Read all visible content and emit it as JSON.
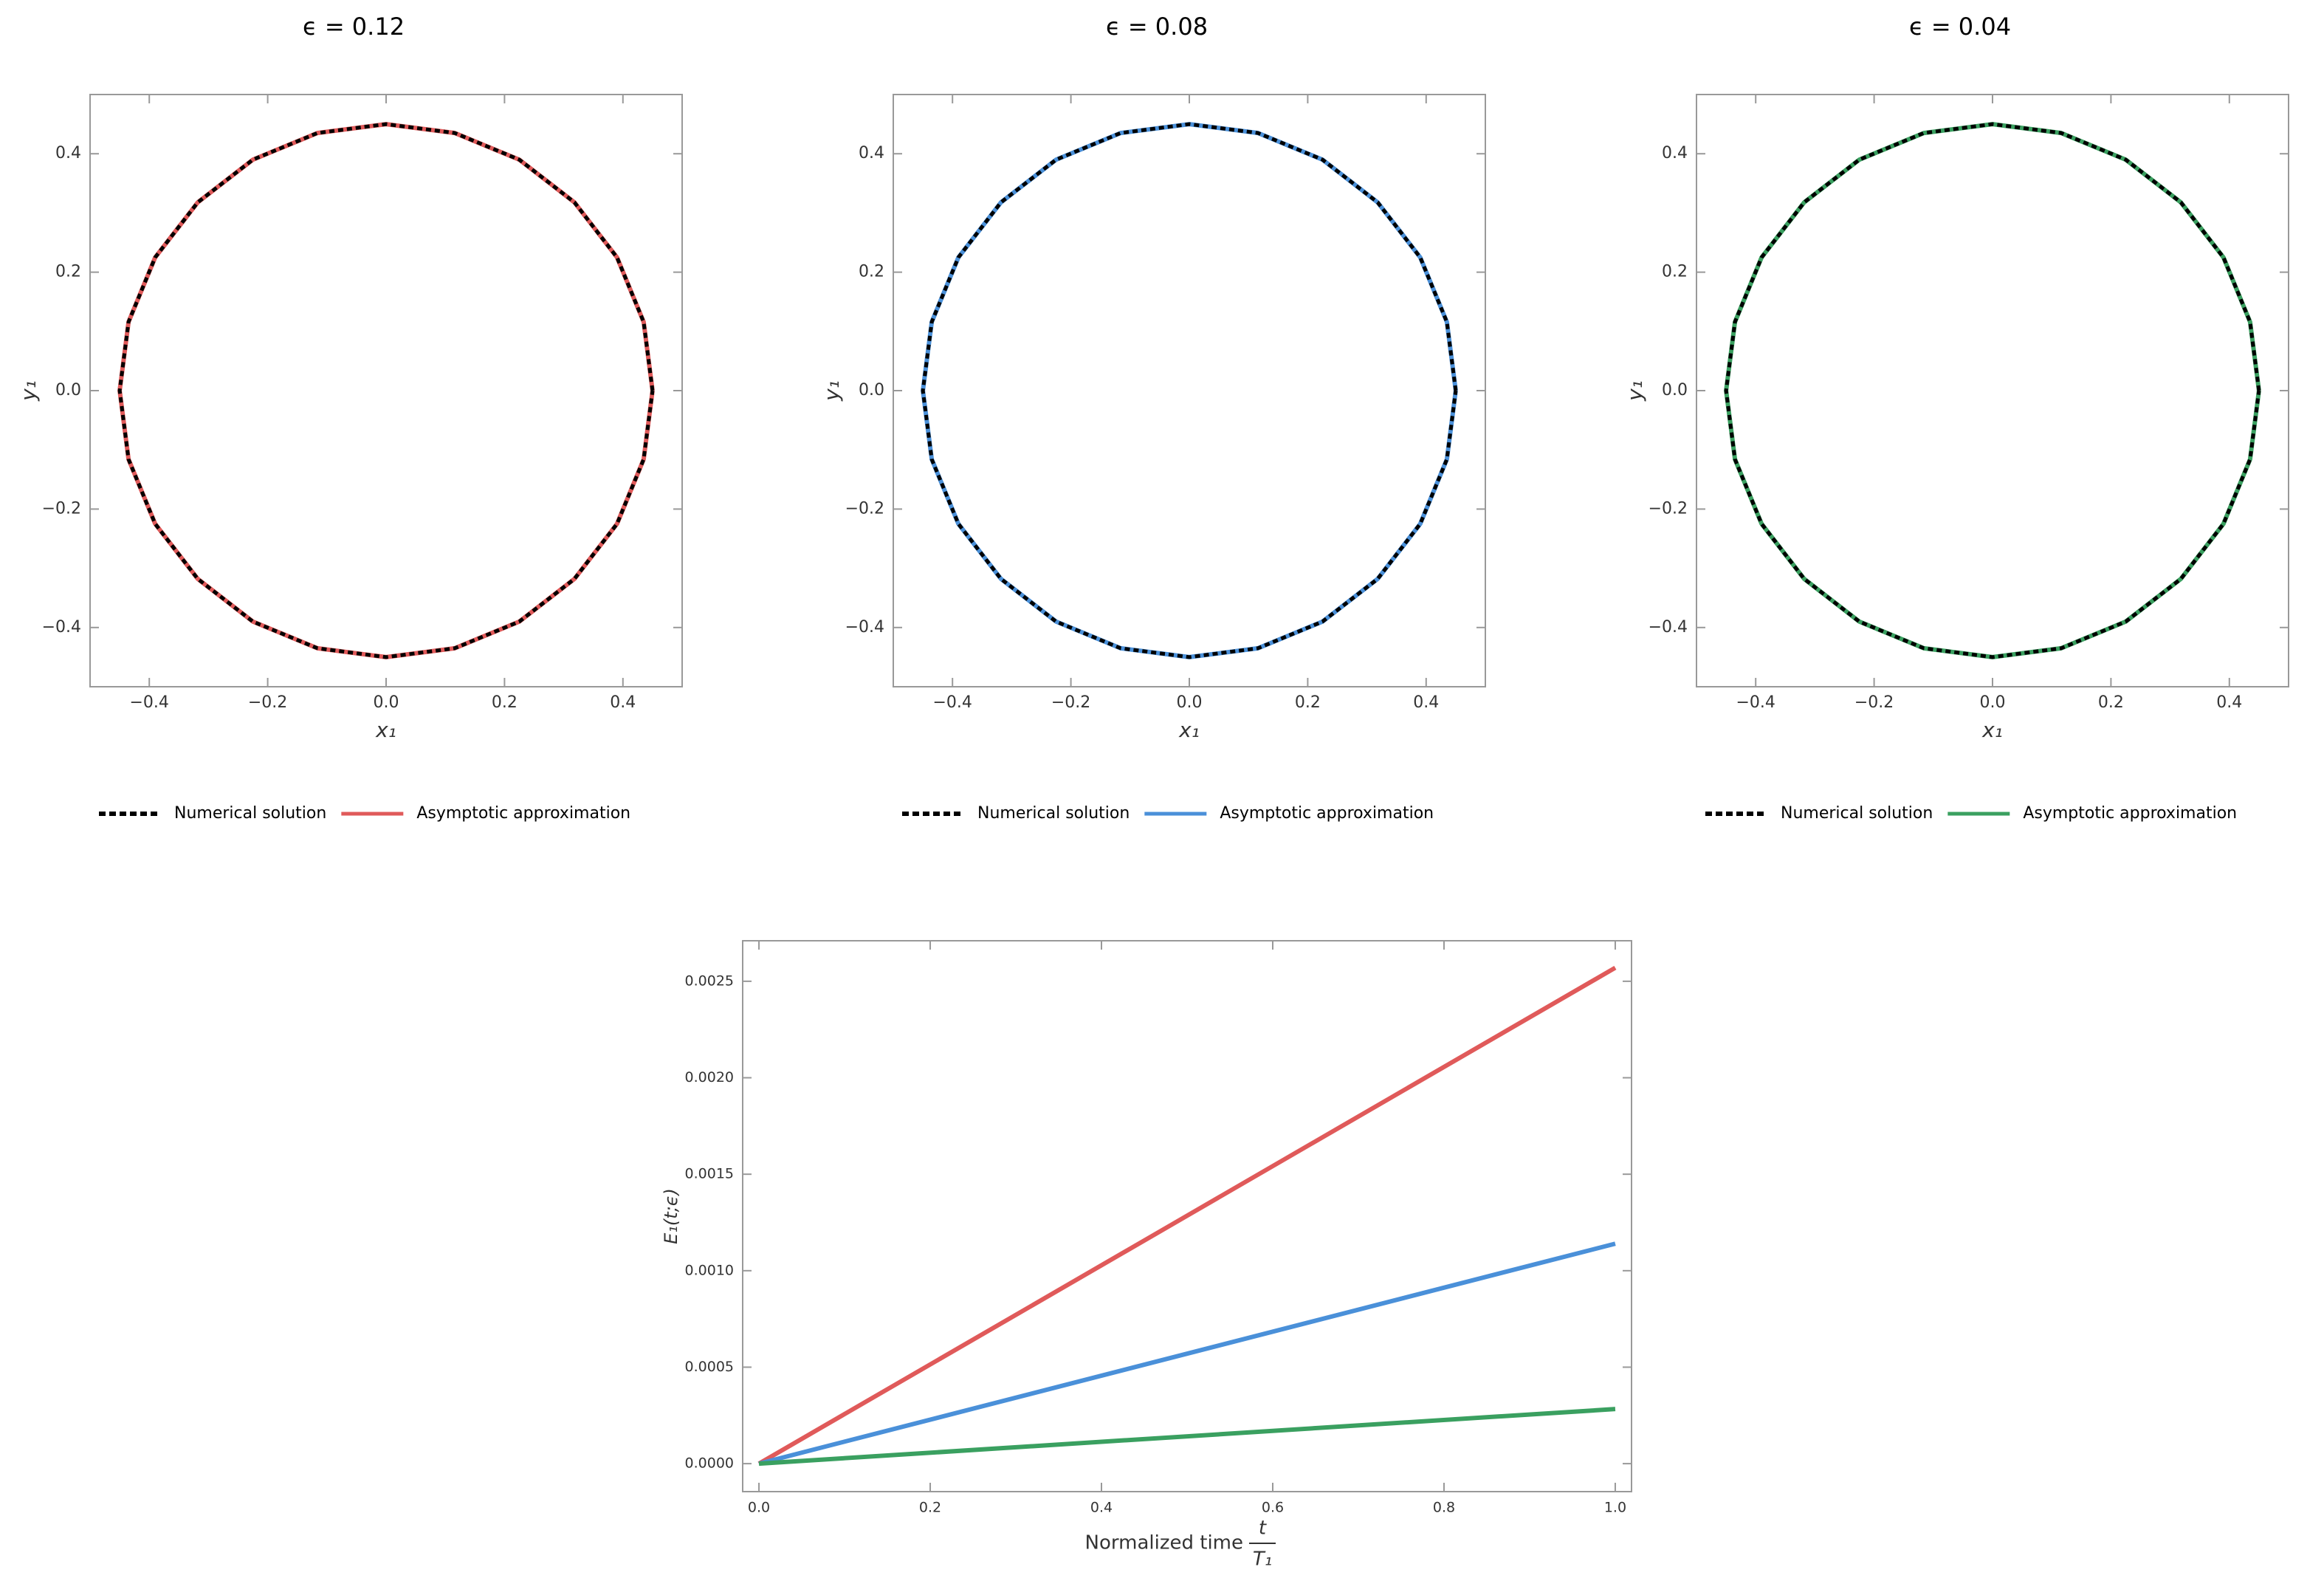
{
  "chart_data": [
    {
      "type": "line",
      "title": "ϵ = 0.12",
      "xlabel": "x₁",
      "ylabel": "y₁",
      "x": [
        0.45,
        0.435,
        0.39,
        0.318,
        0.225,
        0.116,
        0,
        -0.116,
        -0.225,
        -0.318,
        -0.39,
        -0.435,
        -0.45,
        -0.435,
        -0.39,
        -0.318,
        -0.225,
        -0.116,
        0,
        0.116,
        0.225,
        0.318,
        0.39,
        0.435,
        0.45
      ],
      "series": [
        {
          "name": "Numerical solution",
          "color": "#000000",
          "style": "dashed",
          "values": [
            0,
            0.116,
            0.225,
            0.318,
            0.39,
            0.435,
            0.45,
            0.435,
            0.39,
            0.318,
            0.225,
            0.116,
            0,
            -0.116,
            -0.225,
            -0.318,
            -0.39,
            -0.435,
            -0.45,
            -0.435,
            -0.39,
            -0.318,
            -0.225,
            -0.116,
            0
          ]
        },
        {
          "name": "Asymptotic approximation",
          "color": "#e05a5a",
          "style": "solid",
          "values": [
            0,
            0.116,
            0.225,
            0.318,
            0.39,
            0.435,
            0.45,
            0.435,
            0.39,
            0.318,
            0.225,
            0.116,
            0,
            -0.116,
            -0.225,
            -0.318,
            -0.39,
            -0.435,
            -0.45,
            -0.435,
            -0.39,
            -0.318,
            -0.225,
            -0.116,
            0
          ]
        }
      ],
      "xlim": [
        -0.5,
        0.5
      ],
      "ylim": [
        -0.5,
        0.5
      ],
      "xticks": [
        {
          "value": -0.4,
          "label": "−0.4"
        },
        {
          "value": -0.2,
          "label": "−0.2"
        },
        {
          "value": 0,
          "label": "0.0"
        },
        0.2,
        0.4
      ],
      "yticks": [
        {
          "value": -0.4,
          "label": "−0.4"
        },
        {
          "value": -0.2,
          "label": "−0.2"
        },
        {
          "value": 0,
          "label": "0.0"
        },
        0.2,
        0.4
      ],
      "legend": "bottom"
    },
    {
      "type": "line",
      "title": "ϵ = 0.08",
      "xlabel": "x₁",
      "ylabel": "y₁",
      "x": [
        0.45,
        0.435,
        0.39,
        0.318,
        0.225,
        0.116,
        0,
        -0.116,
        -0.225,
        -0.318,
        -0.39,
        -0.435,
        -0.45,
        -0.435,
        -0.39,
        -0.318,
        -0.225,
        -0.116,
        0,
        0.116,
        0.225,
        0.318,
        0.39,
        0.435,
        0.45
      ],
      "series": [
        {
          "name": "Numerical solution",
          "color": "#000000",
          "style": "dashed",
          "values": [
            0,
            0.116,
            0.225,
            0.318,
            0.39,
            0.435,
            0.45,
            0.435,
            0.39,
            0.318,
            0.225,
            0.116,
            0,
            -0.116,
            -0.225,
            -0.318,
            -0.39,
            -0.435,
            -0.45,
            -0.435,
            -0.39,
            -0.318,
            -0.225,
            -0.116,
            0
          ]
        },
        {
          "name": "Asymptotic approximation",
          "color": "#4a90d9",
          "style": "solid",
          "values": [
            0,
            0.116,
            0.225,
            0.318,
            0.39,
            0.435,
            0.45,
            0.435,
            0.39,
            0.318,
            0.225,
            0.116,
            0,
            -0.116,
            -0.225,
            -0.318,
            -0.39,
            -0.435,
            -0.45,
            -0.435,
            -0.39,
            -0.318,
            -0.225,
            -0.116,
            0
          ]
        }
      ],
      "xlim": [
        -0.5,
        0.5
      ],
      "ylim": [
        -0.5,
        0.5
      ],
      "xticks": [
        {
          "value": -0.4,
          "label": "−0.4"
        },
        {
          "value": -0.2,
          "label": "−0.2"
        },
        {
          "value": 0,
          "label": "0.0"
        },
        0.2,
        0.4
      ],
      "yticks": [
        {
          "value": -0.4,
          "label": "−0.4"
        },
        {
          "value": -0.2,
          "label": "−0.2"
        },
        {
          "value": 0,
          "label": "0.0"
        },
        0.2,
        0.4
      ],
      "legend": "bottom"
    },
    {
      "type": "line",
      "title": "ϵ = 0.04",
      "xlabel": "x₁",
      "ylabel": "y₁",
      "x": [
        0.45,
        0.435,
        0.39,
        0.318,
        0.225,
        0.116,
        0,
        -0.116,
        -0.225,
        -0.318,
        -0.39,
        -0.435,
        -0.45,
        -0.435,
        -0.39,
        -0.318,
        -0.225,
        -0.116,
        0,
        0.116,
        0.225,
        0.318,
        0.39,
        0.435,
        0.45
      ],
      "series": [
        {
          "name": "Numerical solution",
          "color": "#000000",
          "style": "dashed",
          "values": [
            0,
            0.116,
            0.225,
            0.318,
            0.39,
            0.435,
            0.45,
            0.435,
            0.39,
            0.318,
            0.225,
            0.116,
            0,
            -0.116,
            -0.225,
            -0.318,
            -0.39,
            -0.435,
            -0.45,
            -0.435,
            -0.39,
            -0.318,
            -0.225,
            -0.116,
            0
          ]
        },
        {
          "name": "Asymptotic approximation",
          "color": "#3aa060",
          "style": "solid",
          "values": [
            0,
            0.116,
            0.225,
            0.318,
            0.39,
            0.435,
            0.45,
            0.435,
            0.39,
            0.318,
            0.225,
            0.116,
            0,
            -0.116,
            -0.225,
            -0.318,
            -0.39,
            -0.435,
            -0.45,
            -0.435,
            -0.39,
            -0.318,
            -0.225,
            -0.116,
            0
          ]
        }
      ],
      "xlim": [
        -0.5,
        0.5
      ],
      "ylim": [
        -0.5,
        0.5
      ],
      "xticks": [
        {
          "value": -0.4,
          "label": "−0.4"
        },
        {
          "value": -0.2,
          "label": "−0.2"
        },
        {
          "value": 0,
          "label": "0.0"
        },
        0.2,
        0.4
      ],
      "yticks": [
        {
          "value": -0.4,
          "label": "−0.4"
        },
        {
          "value": -0.2,
          "label": "−0.2"
        },
        {
          "value": 0,
          "label": "0.0"
        },
        0.2,
        0.4
      ],
      "legend": "bottom"
    },
    {
      "type": "line",
      "xlabel": "Normalized time",
      "xlabel_numerator": "t",
      "xlabel_denominator": "T₁",
      "ylabel": "E₁(t;ϵ)",
      "x": [
        0,
        1
      ],
      "series": [
        {
          "color": "#e05a5a",
          "style": "solid",
          "values": [
            0,
            0.00257
          ]
        },
        {
          "color": "#4a90d9",
          "style": "solid",
          "values": [
            0,
            0.00114
          ]
        },
        {
          "color": "#3aa060",
          "style": "solid",
          "values": [
            0,
            0.000283
          ]
        }
      ],
      "xlim": [
        -0.019,
        1.019
      ],
      "ylim": [
        -0.000145,
        0.00271
      ],
      "xticks": [
        {
          "value": 0,
          "label": "0.0"
        },
        0.2,
        0.4,
        0.6,
        0.8,
        {
          "value": 1,
          "label": "1.0"
        }
      ],
      "yticks": [
        {
          "value": 0,
          "label": "0.0000"
        },
        {
          "value": 0.0005,
          "label": "0.0005"
        },
        {
          "value": 0.001,
          "label": "0.0010"
        },
        {
          "value": 0.0015,
          "label": "0.0015"
        },
        {
          "value": 0.002,
          "label": "0.0020"
        },
        {
          "value": 0.0025,
          "label": "0.0025"
        }
      ]
    }
  ]
}
